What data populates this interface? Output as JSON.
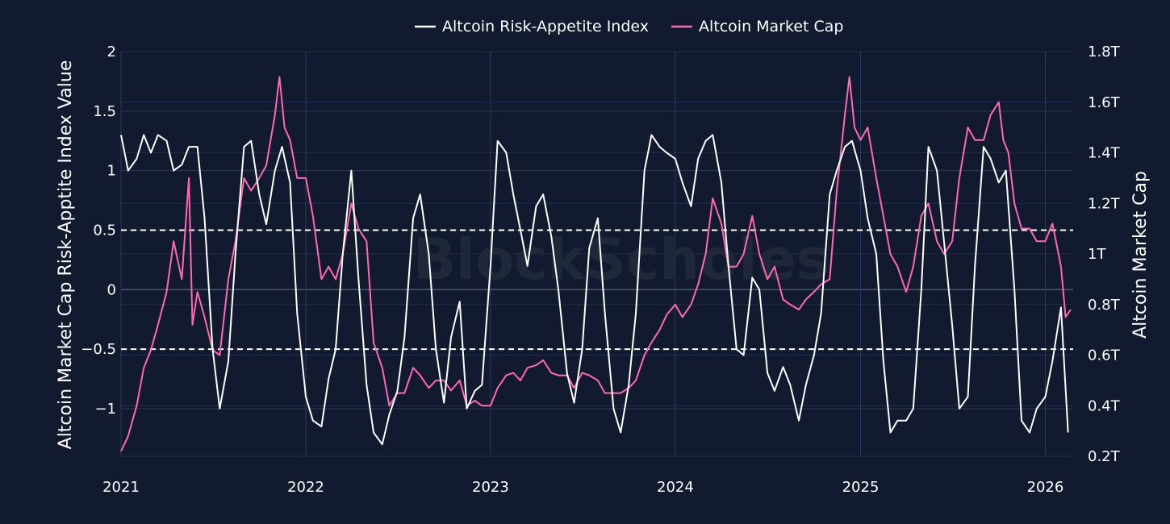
{
  "chart_data": {
    "type": "line",
    "title": "",
    "watermark": "BlockScholes",
    "legend_position": "top-center",
    "grid": true,
    "x_axis": {
      "range": [
        "2021-01-01",
        "2026-02-25"
      ],
      "ticks": [
        "2021",
        "2022",
        "2023",
        "2024",
        "2025",
        "2026"
      ]
    },
    "y_axis_left": {
      "label": "Altcoin Market Cap Risk-Apptite Index Value",
      "range": [
        -1.4,
        2.0
      ],
      "ticks": [
        {
          "v": 2,
          "t": "2"
        },
        {
          "v": 1.5,
          "t": "1.5"
        },
        {
          "v": 1,
          "t": "1"
        },
        {
          "v": 0.5,
          "t": "0.5"
        },
        {
          "v": 0,
          "t": "0"
        },
        {
          "v": -0.5,
          "t": "−0.5"
        },
        {
          "v": -1,
          "t": "−1"
        }
      ]
    },
    "y_axis_right": {
      "label": "Altcoin Market Cap",
      "unit": "T",
      "range": [
        0.2,
        1.8
      ],
      "ticks": [
        {
          "v": 1.8,
          "t": "1.8T"
        },
        {
          "v": 1.6,
          "t": "1.6T"
        },
        {
          "v": 1.4,
          "t": "1.4T"
        },
        {
          "v": 1.2,
          "t": "1.2T"
        },
        {
          "v": 1.0,
          "t": "1T"
        },
        {
          "v": 0.8,
          "t": "0.8T"
        },
        {
          "v": 0.6,
          "t": "0.6T"
        },
        {
          "v": 0.4,
          "t": "0.4T"
        },
        {
          "v": 0.2,
          "t": "0.2T"
        }
      ]
    },
    "reference_lines": [
      0.5,
      -0.5
    ],
    "series": [
      {
        "name": "Altcoin Risk-Appetite Index",
        "axis": "left",
        "color": "#ffffff",
        "points": [
          [
            "2021-01-01",
            1.3
          ],
          [
            "2021-01-15",
            1.0
          ],
          [
            "2021-02-01",
            1.1
          ],
          [
            "2021-02-15",
            1.3
          ],
          [
            "2021-03-01",
            1.15
          ],
          [
            "2021-03-15",
            1.3
          ],
          [
            "2021-04-01",
            1.25
          ],
          [
            "2021-04-15",
            1.0
          ],
          [
            "2021-05-01",
            1.05
          ],
          [
            "2021-05-15",
            1.2
          ],
          [
            "2021-06-01",
            1.2
          ],
          [
            "2021-06-15",
            0.6
          ],
          [
            "2021-07-01",
            -0.5
          ],
          [
            "2021-07-15",
            -1.0
          ],
          [
            "2021-08-01",
            -0.6
          ],
          [
            "2021-08-15",
            0.3
          ],
          [
            "2021-09-01",
            1.2
          ],
          [
            "2021-09-15",
            1.25
          ],
          [
            "2021-10-01",
            0.8
          ],
          [
            "2021-10-15",
            0.55
          ],
          [
            "2021-11-01",
            1.0
          ],
          [
            "2021-11-15",
            1.2
          ],
          [
            "2021-12-01",
            0.9
          ],
          [
            "2021-12-15",
            -0.2
          ],
          [
            "2022-01-01",
            -0.9
          ],
          [
            "2022-01-15",
            -1.1
          ],
          [
            "2022-02-01",
            -1.15
          ],
          [
            "2022-02-15",
            -0.75
          ],
          [
            "2022-03-01",
            -0.5
          ],
          [
            "2022-03-15",
            0.3
          ],
          [
            "2022-04-01",
            1.0
          ],
          [
            "2022-04-15",
            0.1
          ],
          [
            "2022-05-01",
            -0.8
          ],
          [
            "2022-05-15",
            -1.2
          ],
          [
            "2022-06-01",
            -1.3
          ],
          [
            "2022-06-15",
            -1.05
          ],
          [
            "2022-07-01",
            -0.85
          ],
          [
            "2022-07-15",
            -0.4
          ],
          [
            "2022-08-01",
            0.6
          ],
          [
            "2022-08-15",
            0.8
          ],
          [
            "2022-09-01",
            0.3
          ],
          [
            "2022-09-15",
            -0.5
          ],
          [
            "2022-10-01",
            -0.95
          ],
          [
            "2022-10-15",
            -0.4
          ],
          [
            "2022-11-01",
            -0.1
          ],
          [
            "2022-11-15",
            -1.0
          ],
          [
            "2022-12-01",
            -0.85
          ],
          [
            "2022-12-15",
            -0.8
          ],
          [
            "2023-01-01",
            0.2
          ],
          [
            "2023-01-15",
            1.25
          ],
          [
            "2023-02-01",
            1.15
          ],
          [
            "2023-02-15",
            0.8
          ],
          [
            "2023-03-01",
            0.5
          ],
          [
            "2023-03-15",
            0.2
          ],
          [
            "2023-04-01",
            0.7
          ],
          [
            "2023-04-15",
            0.8
          ],
          [
            "2023-05-01",
            0.45
          ],
          [
            "2023-05-15",
            0.0
          ],
          [
            "2023-06-01",
            -0.7
          ],
          [
            "2023-06-15",
            -0.95
          ],
          [
            "2023-07-01",
            -0.5
          ],
          [
            "2023-07-15",
            0.35
          ],
          [
            "2023-08-01",
            0.6
          ],
          [
            "2023-08-15",
            -0.2
          ],
          [
            "2023-09-01",
            -1.0
          ],
          [
            "2023-09-15",
            -1.2
          ],
          [
            "2023-10-01",
            -0.8
          ],
          [
            "2023-10-15",
            -0.2
          ],
          [
            "2023-11-01",
            1.0
          ],
          [
            "2023-11-15",
            1.3
          ],
          [
            "2023-12-01",
            1.2
          ],
          [
            "2023-12-15",
            1.15
          ],
          [
            "2024-01-01",
            1.1
          ],
          [
            "2024-01-15",
            0.9
          ],
          [
            "2024-02-01",
            0.7
          ],
          [
            "2024-02-15",
            1.1
          ],
          [
            "2024-03-01",
            1.25
          ],
          [
            "2024-03-15",
            1.3
          ],
          [
            "2024-04-01",
            0.9
          ],
          [
            "2024-04-15",
            0.2
          ],
          [
            "2024-05-01",
            -0.5
          ],
          [
            "2024-05-15",
            -0.55
          ],
          [
            "2024-06-01",
            0.1
          ],
          [
            "2024-06-15",
            0.0
          ],
          [
            "2024-07-01",
            -0.7
          ],
          [
            "2024-07-15",
            -0.85
          ],
          [
            "2024-08-01",
            -0.65
          ],
          [
            "2024-08-15",
            -0.8
          ],
          [
            "2024-09-01",
            -1.1
          ],
          [
            "2024-09-15",
            -0.8
          ],
          [
            "2024-10-01",
            -0.55
          ],
          [
            "2024-10-15",
            -0.2
          ],
          [
            "2024-11-01",
            0.8
          ],
          [
            "2024-11-15",
            1.0
          ],
          [
            "2024-12-01",
            1.2
          ],
          [
            "2024-12-15",
            1.25
          ],
          [
            "2025-01-01",
            1.0
          ],
          [
            "2025-01-15",
            0.6
          ],
          [
            "2025-02-01",
            0.3
          ],
          [
            "2025-02-15",
            -0.6
          ],
          [
            "2025-03-01",
            -1.2
          ],
          [
            "2025-03-15",
            -1.1
          ],
          [
            "2025-04-01",
            -1.1
          ],
          [
            "2025-04-15",
            -1.0
          ],
          [
            "2025-05-01",
            0.0
          ],
          [
            "2025-05-15",
            1.2
          ],
          [
            "2025-06-01",
            1.0
          ],
          [
            "2025-06-15",
            0.4
          ],
          [
            "2025-07-01",
            -0.3
          ],
          [
            "2025-07-15",
            -1.0
          ],
          [
            "2025-08-01",
            -0.9
          ],
          [
            "2025-08-15",
            0.2
          ],
          [
            "2025-09-01",
            1.2
          ],
          [
            "2025-09-15",
            1.1
          ],
          [
            "2025-10-01",
            0.9
          ],
          [
            "2025-10-15",
            1.0
          ],
          [
            "2025-11-01",
            0.0
          ],
          [
            "2025-11-15",
            -1.1
          ],
          [
            "2025-12-01",
            -1.2
          ],
          [
            "2025-12-15",
            -1.0
          ],
          [
            "2026-01-01",
            -0.9
          ],
          [
            "2026-01-15",
            -0.6
          ],
          [
            "2026-02-01",
            -0.15
          ],
          [
            "2026-02-15",
            -1.2
          ]
        ]
      },
      {
        "name": "Altcoin Market Cap",
        "axis": "right",
        "color": "#ff69b4",
        "points": [
          [
            "2021-01-01",
            0.22
          ],
          [
            "2021-01-15",
            0.28
          ],
          [
            "2021-02-01",
            0.4
          ],
          [
            "2021-02-15",
            0.55
          ],
          [
            "2021-03-01",
            0.62
          ],
          [
            "2021-03-15",
            0.72
          ],
          [
            "2021-04-01",
            0.85
          ],
          [
            "2021-04-15",
            1.05
          ],
          [
            "2021-05-01",
            0.9
          ],
          [
            "2021-05-15",
            1.3
          ],
          [
            "2021-05-22",
            0.72
          ],
          [
            "2021-06-01",
            0.85
          ],
          [
            "2021-06-15",
            0.75
          ],
          [
            "2021-07-01",
            0.62
          ],
          [
            "2021-07-15",
            0.6
          ],
          [
            "2021-08-01",
            0.9
          ],
          [
            "2021-08-15",
            1.05
          ],
          [
            "2021-09-01",
            1.3
          ],
          [
            "2021-09-15",
            1.25
          ],
          [
            "2021-10-01",
            1.3
          ],
          [
            "2021-10-15",
            1.35
          ],
          [
            "2021-11-01",
            1.55
          ],
          [
            "2021-11-10",
            1.7
          ],
          [
            "2021-11-20",
            1.5
          ],
          [
            "2021-12-01",
            1.45
          ],
          [
            "2021-12-15",
            1.3
          ],
          [
            "2022-01-01",
            1.3
          ],
          [
            "2022-01-15",
            1.15
          ],
          [
            "2022-02-01",
            0.9
          ],
          [
            "2022-02-15",
            0.95
          ],
          [
            "2022-03-01",
            0.9
          ],
          [
            "2022-03-15",
            1.0
          ],
          [
            "2022-04-01",
            1.2
          ],
          [
            "2022-04-15",
            1.1
          ],
          [
            "2022-05-01",
            1.05
          ],
          [
            "2022-05-15",
            0.65
          ],
          [
            "2022-06-01",
            0.55
          ],
          [
            "2022-06-15",
            0.4
          ],
          [
            "2022-07-01",
            0.45
          ],
          [
            "2022-07-15",
            0.45
          ],
          [
            "2022-08-01",
            0.55
          ],
          [
            "2022-08-15",
            0.52
          ],
          [
            "2022-09-01",
            0.47
          ],
          [
            "2022-09-15",
            0.5
          ],
          [
            "2022-10-01",
            0.5
          ],
          [
            "2022-10-15",
            0.46
          ],
          [
            "2022-11-01",
            0.5
          ],
          [
            "2022-11-15",
            0.4
          ],
          [
            "2022-12-01",
            0.42
          ],
          [
            "2022-12-15",
            0.4
          ],
          [
            "2023-01-01",
            0.4
          ],
          [
            "2023-01-15",
            0.47
          ],
          [
            "2023-02-01",
            0.52
          ],
          [
            "2023-02-15",
            0.53
          ],
          [
            "2023-03-01",
            0.5
          ],
          [
            "2023-03-15",
            0.55
          ],
          [
            "2023-04-01",
            0.56
          ],
          [
            "2023-04-15",
            0.58
          ],
          [
            "2023-05-01",
            0.53
          ],
          [
            "2023-05-15",
            0.52
          ],
          [
            "2023-06-01",
            0.52
          ],
          [
            "2023-06-15",
            0.47
          ],
          [
            "2023-07-01",
            0.53
          ],
          [
            "2023-07-15",
            0.52
          ],
          [
            "2023-08-01",
            0.5
          ],
          [
            "2023-08-15",
            0.45
          ],
          [
            "2023-09-01",
            0.45
          ],
          [
            "2023-09-15",
            0.45
          ],
          [
            "2023-10-01",
            0.47
          ],
          [
            "2023-10-15",
            0.5
          ],
          [
            "2023-11-01",
            0.6
          ],
          [
            "2023-11-15",
            0.65
          ],
          [
            "2023-12-01",
            0.7
          ],
          [
            "2023-12-15",
            0.76
          ],
          [
            "2024-01-01",
            0.8
          ],
          [
            "2024-01-15",
            0.75
          ],
          [
            "2024-02-01",
            0.8
          ],
          [
            "2024-02-15",
            0.88
          ],
          [
            "2024-03-01",
            1.0
          ],
          [
            "2024-03-15",
            1.22
          ],
          [
            "2024-04-01",
            1.12
          ],
          [
            "2024-04-15",
            0.95
          ],
          [
            "2024-05-01",
            0.95
          ],
          [
            "2024-05-15",
            1.0
          ],
          [
            "2024-06-01",
            1.15
          ],
          [
            "2024-06-15",
            1.0
          ],
          [
            "2024-07-01",
            0.9
          ],
          [
            "2024-07-15",
            0.95
          ],
          [
            "2024-08-01",
            0.82
          ],
          [
            "2024-08-15",
            0.8
          ],
          [
            "2024-09-01",
            0.78
          ],
          [
            "2024-09-15",
            0.82
          ],
          [
            "2024-10-01",
            0.85
          ],
          [
            "2024-10-15",
            0.88
          ],
          [
            "2024-11-01",
            0.9
          ],
          [
            "2024-11-15",
            1.25
          ],
          [
            "2024-12-01",
            1.55
          ],
          [
            "2024-12-10",
            1.7
          ],
          [
            "2024-12-20",
            1.5
          ],
          [
            "2025-01-01",
            1.45
          ],
          [
            "2025-01-15",
            1.5
          ],
          [
            "2025-02-01",
            1.3
          ],
          [
            "2025-02-15",
            1.15
          ],
          [
            "2025-03-01",
            1.0
          ],
          [
            "2025-03-15",
            0.95
          ],
          [
            "2025-04-01",
            0.85
          ],
          [
            "2025-04-15",
            0.95
          ],
          [
            "2025-05-01",
            1.15
          ],
          [
            "2025-05-15",
            1.2
          ],
          [
            "2025-06-01",
            1.05
          ],
          [
            "2025-06-15",
            1.0
          ],
          [
            "2025-07-01",
            1.05
          ],
          [
            "2025-07-15",
            1.3
          ],
          [
            "2025-08-01",
            1.5
          ],
          [
            "2025-08-15",
            1.45
          ],
          [
            "2025-09-01",
            1.45
          ],
          [
            "2025-09-15",
            1.55
          ],
          [
            "2025-10-01",
            1.6
          ],
          [
            "2025-10-10",
            1.45
          ],
          [
            "2025-10-20",
            1.4
          ],
          [
            "2025-11-01",
            1.2
          ],
          [
            "2025-11-15",
            1.1
          ],
          [
            "2025-12-01",
            1.1
          ],
          [
            "2025-12-15",
            1.05
          ],
          [
            "2026-01-01",
            1.05
          ],
          [
            "2026-01-15",
            1.12
          ],
          [
            "2026-02-01",
            0.95
          ],
          [
            "2026-02-10",
            0.75
          ],
          [
            "2026-02-20",
            0.78
          ]
        ]
      }
    ]
  }
}
